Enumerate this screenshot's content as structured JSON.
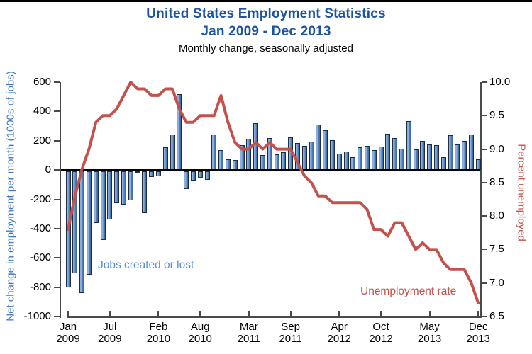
{
  "title": {
    "line1": "United States Employment Statistics",
    "line2": "Jan 2009 - Dec 2013",
    "subtitle": "Monthly change, seasonally adjusted"
  },
  "annotations": {
    "bars_label": "Jobs created or lost",
    "line_label": "Unemployment rate"
  },
  "colors": {
    "title_blue": "#1e549f",
    "bar_fill": "#4f81bd",
    "bar_border": "#1f2d42",
    "line_red": "#c4524c",
    "left_axis_title_blue": "#3f74c4",
    "bars_annotation_blue": "#5b8ed6",
    "axis_gray": "#4a4a4a",
    "zero_line_black": "#000000"
  },
  "left_axis": {
    "title": "Net change in employment per month (1000s of jobs)",
    "ticks": [
      600,
      400,
      200,
      0,
      -200,
      -400,
      -600,
      -800,
      -1000
    ],
    "range": [
      -1000,
      600
    ]
  },
  "right_axis": {
    "title": "Percent unemployed",
    "ticks": [
      10.0,
      9.5,
      9.0,
      8.5,
      8.0,
      7.5,
      7.0,
      6.5
    ],
    "range": [
      6.5,
      10.0
    ]
  },
  "x_axis": {
    "ticks": [
      {
        "month": "Jan",
        "year": "2009",
        "month_index": 0
      },
      {
        "month": "Jul",
        "year": "2009",
        "month_index": 6
      },
      {
        "month": "Feb",
        "year": "2010",
        "month_index": 13
      },
      {
        "month": "Aug",
        "year": "2010",
        "month_index": 19
      },
      {
        "month": "Mar",
        "year": "2011",
        "month_index": 26
      },
      {
        "month": "Sep",
        "year": "2011",
        "month_index": 32
      },
      {
        "month": "Apr",
        "year": "2012",
        "month_index": 39
      },
      {
        "month": "Oct",
        "year": "2012",
        "month_index": 45
      },
      {
        "month": "May",
        "year": "2013",
        "month_index": 52
      },
      {
        "month": "Dec",
        "year": "2013",
        "month_index": 59
      }
    ]
  },
  "chart_data": [
    {
      "type": "bar",
      "name": "Jobs created or lost",
      "unit": "thousands of jobs per month",
      "axis": "left",
      "ylabel": "Net change in employment per month (1000s of jobs)",
      "ylim": [
        -1000,
        600
      ],
      "categories": [
        "Jan 2009",
        "Feb 2009",
        "Mar 2009",
        "Apr 2009",
        "May 2009",
        "Jun 2009",
        "Jul 2009",
        "Aug 2009",
        "Sep 2009",
        "Oct 2009",
        "Nov 2009",
        "Dec 2009",
        "Jan 2010",
        "Feb 2010",
        "Mar 2010",
        "Apr 2010",
        "May 2010",
        "Jun 2010",
        "Jul 2010",
        "Aug 2010",
        "Sep 2010",
        "Oct 2010",
        "Nov 2010",
        "Dec 2010",
        "Jan 2011",
        "Feb 2011",
        "Mar 2011",
        "Apr 2011",
        "May 2011",
        "Jun 2011",
        "Jul 2011",
        "Aug 2011",
        "Sep 2011",
        "Oct 2011",
        "Nov 2011",
        "Dec 2011",
        "Jan 2012",
        "Feb 2012",
        "Mar 2012",
        "Apr 2012",
        "May 2012",
        "Jun 2012",
        "Jul 2012",
        "Aug 2012",
        "Sep 2012",
        "Oct 2012",
        "Nov 2012",
        "Dec 2012",
        "Jan 2013",
        "Feb 2013",
        "Mar 2013",
        "Apr 2013",
        "May 2013",
        "Jun 2013",
        "Jul 2013",
        "Aug 2013",
        "Sep 2013",
        "Oct 2013",
        "Nov 2013",
        "Dec 2013"
      ],
      "values": [
        -794,
        -695,
        -830,
        -704,
        -352,
        -467,
        -327,
        -216,
        -227,
        -198,
        -6,
        -283,
        -40,
        -35,
        156,
        240,
        516,
        -122,
        -61,
        -42,
        -57,
        241,
        137,
        71,
        70,
        168,
        212,
        322,
        102,
        217,
        106,
        122,
        221,
        183,
        164,
        196,
        311,
        271,
        205,
        112,
        125,
        87,
        153,
        165,
        138,
        160,
        247,
        219,
        148,
        332,
        142,
        199,
        176,
        172,
        89,
        238,
        175,
        200,
        241,
        74
      ]
    },
    {
      "type": "line",
      "name": "Unemployment rate",
      "unit": "percent",
      "axis": "right",
      "ylabel": "Percent unemployed",
      "ylim": [
        6.5,
        10.0
      ],
      "values": [
        7.8,
        8.3,
        8.7,
        9.0,
        9.4,
        9.5,
        9.5,
        9.6,
        9.8,
        10.0,
        9.9,
        9.9,
        9.8,
        9.8,
        9.9,
        9.9,
        9.6,
        9.4,
        9.4,
        9.5,
        9.5,
        9.5,
        9.8,
        9.4,
        9.1,
        9.0,
        9.0,
        9.1,
        9.0,
        9.1,
        9.0,
        9.0,
        9.0,
        8.8,
        8.6,
        8.5,
        8.3,
        8.3,
        8.2,
        8.2,
        8.2,
        8.2,
        8.2,
        8.1,
        7.8,
        7.8,
        7.7,
        7.9,
        7.9,
        7.7,
        7.5,
        7.6,
        7.5,
        7.5,
        7.3,
        7.2,
        7.2,
        7.2,
        7.0,
        6.7
      ]
    }
  ]
}
